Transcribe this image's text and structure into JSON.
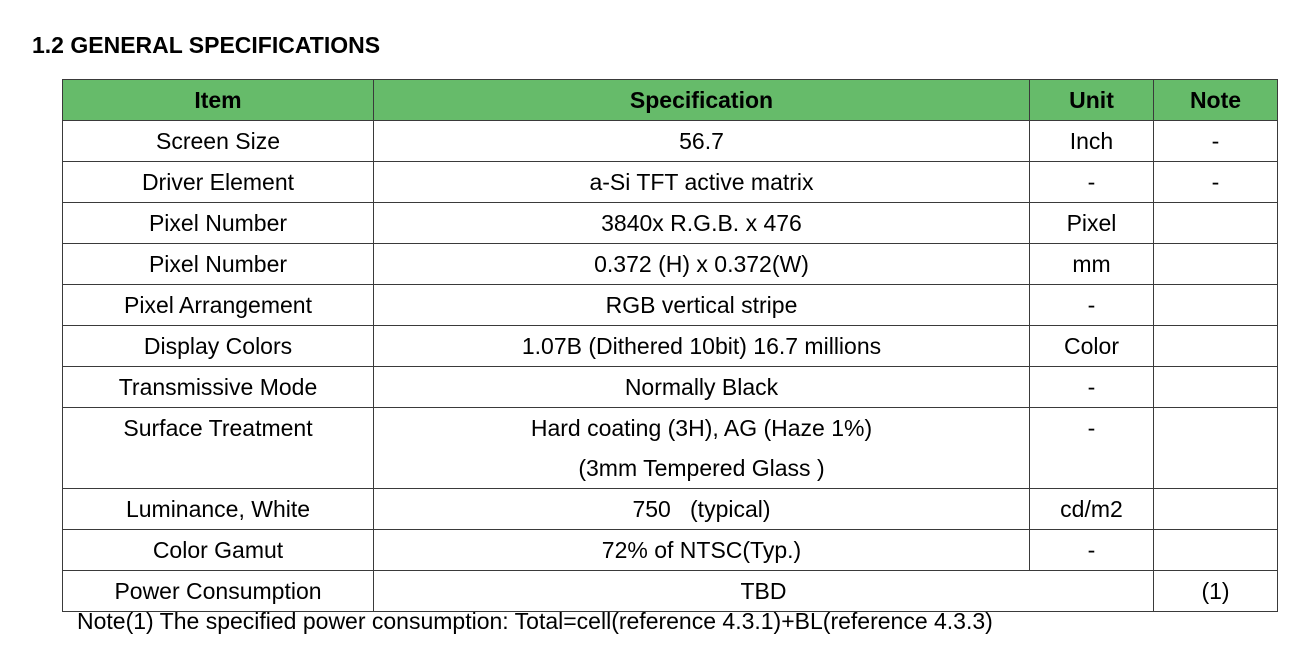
{
  "section": {
    "title": "1.2 GENERAL SPECIFICATIONS"
  },
  "table": {
    "headers": {
      "item": "Item",
      "specification": "Specification",
      "unit": "Unit",
      "note": "Note"
    },
    "header_color": "#66bb6a",
    "rows": [
      {
        "item": "Screen Size",
        "specification": "56.7",
        "unit": "Inch",
        "note": "-"
      },
      {
        "item": "Driver Element",
        "specification": "a-Si TFT active matrix",
        "unit": "-",
        "note": "-"
      },
      {
        "item": "Pixel Number",
        "specification": "3840x R.G.B. x 476",
        "unit": "Pixel",
        "note": ""
      },
      {
        "item": "Pixel Number",
        "specification": "0.372 (H) x 0.372(W)",
        "unit": "mm",
        "note": ""
      },
      {
        "item": "Pixel Arrangement",
        "specification": "RGB vertical stripe",
        "unit": "-",
        "note": ""
      },
      {
        "item": "Display Colors",
        "specification": "1.07B (Dithered 10bit) 16.7 millions",
        "unit": "Color",
        "note": ""
      },
      {
        "item": "Transmissive Mode",
        "specification": "Normally Black",
        "unit": "-",
        "note": ""
      },
      {
        "item": "Surface Treatment",
        "specification": "Hard coating (3H), AG (Haze 1%)",
        "specification_line2": "(3mm Tempered Glass )",
        "unit": "-",
        "note": ""
      },
      {
        "item": "Luminance, White",
        "specification": "750   (typical)",
        "unit": "cd/m2",
        "note": ""
      },
      {
        "item": "Color Gamut",
        "specification": "72% of NTSC(Typ.)",
        "unit": "-",
        "note": ""
      },
      {
        "item": "Power Consumption",
        "specification": "TBD",
        "note": "(1)"
      }
    ]
  },
  "footnote": "Note(1) The specified power consumption: Total=cell(reference 4.3.1)+BL(reference 4.3.3)"
}
